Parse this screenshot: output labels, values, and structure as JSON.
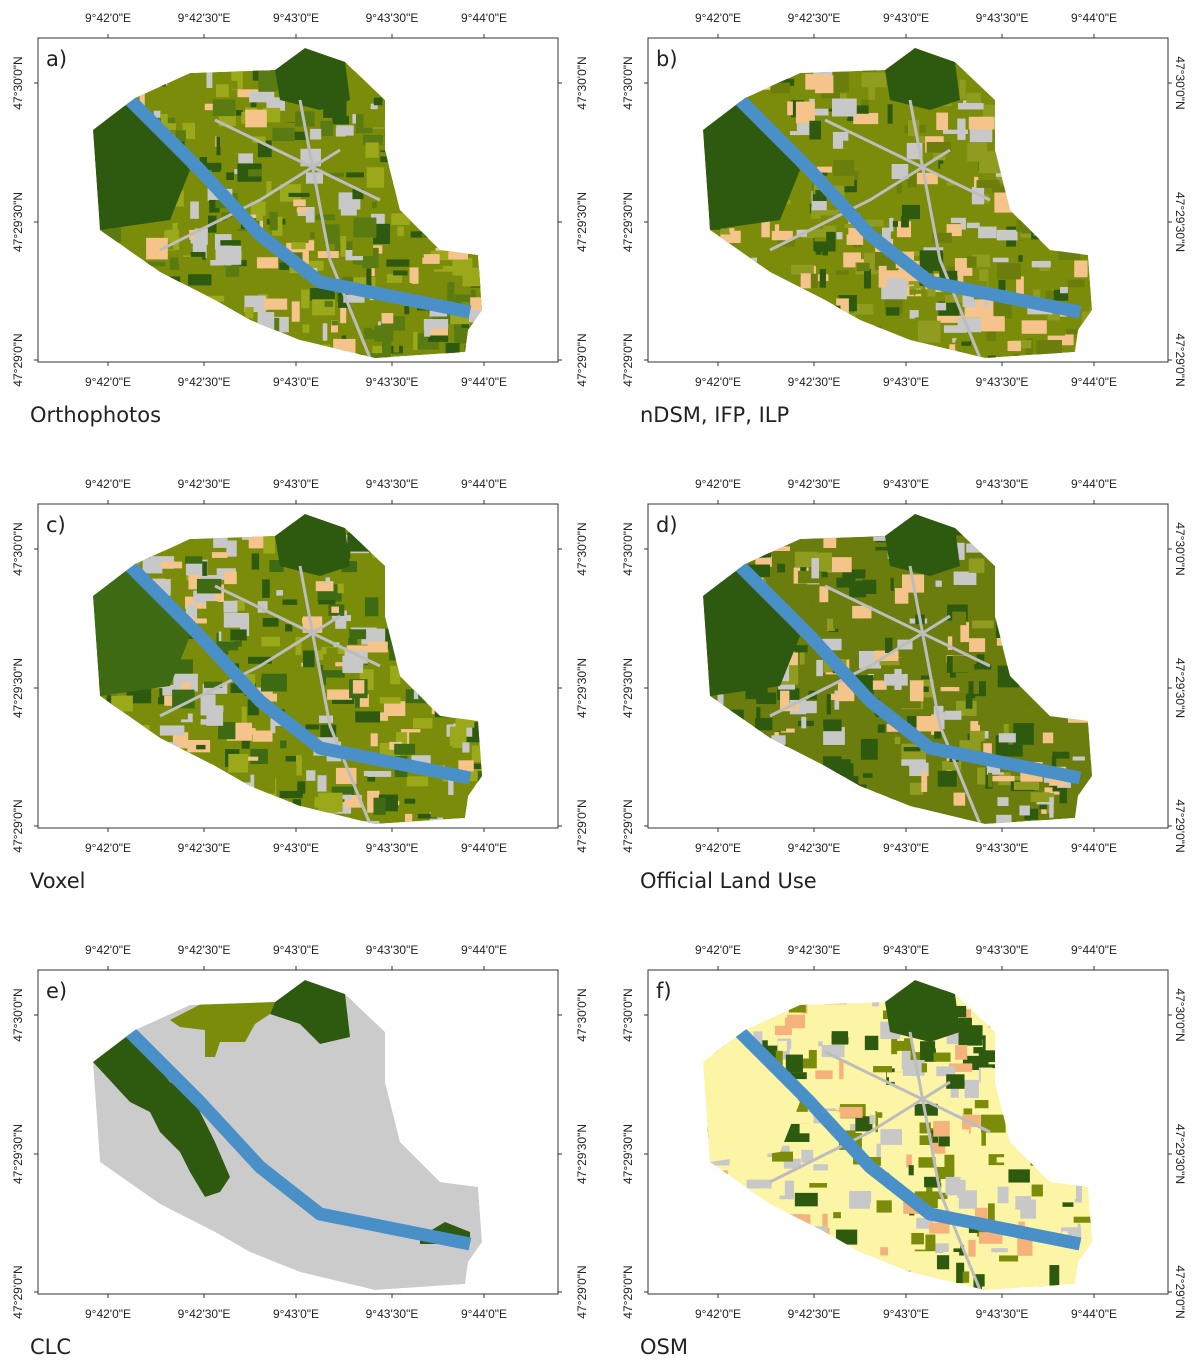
{
  "panels": [
    {
      "label": "a)",
      "caption": "Orthophotos"
    },
    {
      "label": "b)",
      "caption": "nDSM, IFP, ILP"
    },
    {
      "label": "c)",
      "caption": "Voxel"
    },
    {
      "label": "d)",
      "caption": "Official Land Use"
    },
    {
      "label": "e)",
      "caption": "CLC"
    },
    {
      "label": "f)",
      "caption": "OSM"
    }
  ],
  "x_ticks": [
    "9°42'0\"E",
    "9°42'30\"E",
    "9°43'0\"E",
    "9°43'30\"E",
    "9°44'0\"E"
  ],
  "y_ticks": [
    "47°30'0\"N",
    "47°29'30\"N",
    "47°29'0\"N"
  ]
}
